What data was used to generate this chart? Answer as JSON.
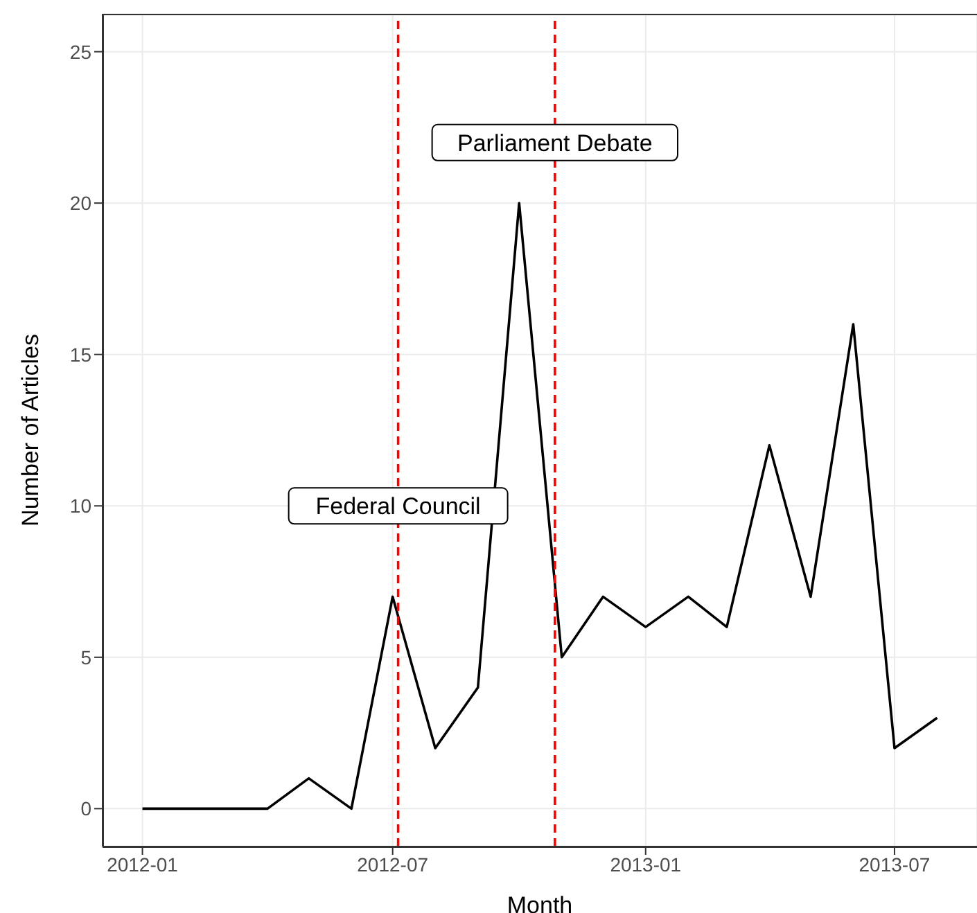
{
  "chart_data": {
    "type": "line",
    "xlabel": "Month",
    "ylabel": "Number of Articles",
    "x": [
      "2012-01",
      "2012-02",
      "2012-03",
      "2012-04",
      "2012-05",
      "2012-06",
      "2012-07",
      "2012-08",
      "2012-09",
      "2012-10",
      "2012-11",
      "2012-12",
      "2013-01",
      "2013-02",
      "2013-03",
      "2013-04",
      "2013-05",
      "2013-06",
      "2013-07",
      "2013-08"
    ],
    "series": [
      {
        "color": "#000000",
        "values": [
          0,
          0,
          0,
          0,
          1,
          0,
          7,
          2,
          4,
          20,
          5,
          7,
          6,
          7,
          6,
          12,
          7,
          16,
          2,
          3
        ]
      }
    ],
    "xlim": [
      "2011-12-03",
      "2013-08-30"
    ],
    "xticks": [
      "2012-01",
      "2012-07",
      "2013-01",
      "2013-07"
    ],
    "ylim": [
      -1.25,
      26.25
    ],
    "yticks": [
      0,
      5,
      10,
      15,
      20,
      25
    ],
    "grid": true,
    "marker": "none",
    "line_style": "solid",
    "ref_lines": [
      {
        "axis": "x",
        "value": "2012-07-05",
        "color": "#ff0000",
        "line_style": "dashed"
      },
      {
        "axis": "x",
        "value": "2012-10-27",
        "color": "#ff0000",
        "line_style": "dashed"
      }
    ],
    "annotations": [
      {
        "text": "Federal Council",
        "x": "2012-07-05",
        "y": 10
      },
      {
        "text": "Parliament Debate",
        "x": "2012-10-27",
        "y": 22
      }
    ]
  }
}
